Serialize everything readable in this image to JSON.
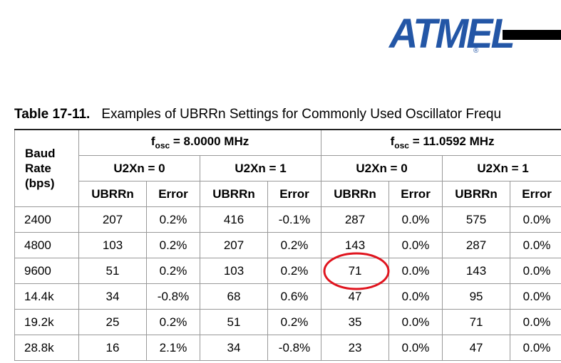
{
  "logo": {
    "text": "ATMEL",
    "mark": "®"
  },
  "table": {
    "number": "Table 17-11.",
    "caption": "Examples of UBRRn Settings for Commonly Used Oscillator Frequ",
    "row_header": [
      "Baud",
      "Rate",
      "(bps)"
    ],
    "oscillators": [
      {
        "symbol": "f",
        "subscript": "osc",
        "text": "= 8.0000 MHz"
      },
      {
        "symbol": "f",
        "subscript": "osc",
        "text": "= 11.0592 MHz"
      }
    ],
    "modes": [
      "U2Xn = 0",
      "U2Xn = 1",
      "U2Xn = 0",
      "U2Xn = 1"
    ],
    "subheaders": [
      "UBRRn",
      "Error",
      "UBRRn",
      "Error",
      "UBRRn",
      "Error",
      "UBRRn",
      "Error"
    ],
    "rows": [
      [
        "2400",
        "207",
        "0.2%",
        "416",
        "-0.1%",
        "287",
        "0.0%",
        "575",
        "0.0%"
      ],
      [
        "4800",
        "103",
        "0.2%",
        "207",
        "0.2%",
        "143",
        "0.0%",
        "287",
        "0.0%"
      ],
      [
        "9600",
        "51",
        "0.2%",
        "103",
        "0.2%",
        "71",
        "0.0%",
        "143",
        "0.0%"
      ],
      [
        "14.4k",
        "34",
        "-0.8%",
        "68",
        "0.6%",
        "47",
        "0.0%",
        "95",
        "0.0%"
      ],
      [
        "19.2k",
        "25",
        "0.2%",
        "51",
        "0.2%",
        "35",
        "0.0%",
        "71",
        "0.0%"
      ],
      [
        "28.8k",
        "16",
        "2.1%",
        "34",
        "-0.8%",
        "23",
        "0.0%",
        "47",
        "0.0%"
      ]
    ]
  }
}
